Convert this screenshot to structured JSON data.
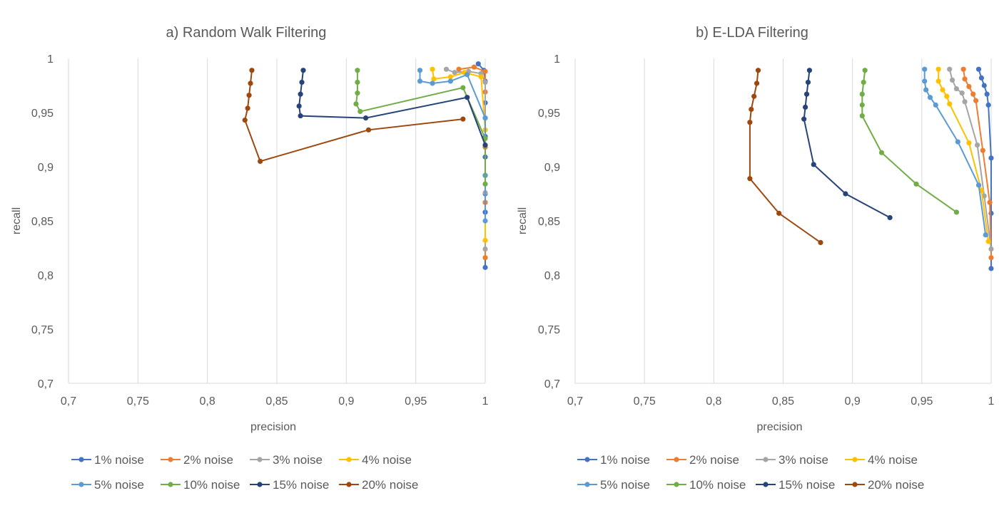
{
  "chart_data": [
    {
      "type": "line",
      "title": "a) Random Walk Filtering",
      "xlabel": "precision",
      "ylabel": "recall",
      "xlim": [
        0.7,
        1
      ],
      "ylim": [
        0.7,
        1
      ],
      "xticks": [
        0.7,
        0.75,
        0.8,
        0.85,
        0.9,
        0.95,
        1
      ],
      "yticks": [
        0.7,
        0.75,
        0.8,
        0.85,
        0.9,
        0.95,
        1
      ],
      "xtick_labels": [
        "0,7",
        "0,75",
        "0,8",
        "0,85",
        "0,9",
        "0,95",
        "1"
      ],
      "ytick_labels": [
        "0,7",
        "0,75",
        "0,8",
        "0,85",
        "0,9",
        "0,95",
        "1"
      ],
      "grid": "vertical",
      "legend_position": "bottom",
      "series": [
        {
          "name": "1% noise",
          "color": "#4472c4",
          "points": [
            [
              0.995,
              0.995
            ],
            [
              0.999,
              0.989
            ],
            [
              1.0,
              0.979
            ],
            [
              1.0,
              0.959
            ],
            [
              1.0,
              0.945
            ],
            [
              1.0,
              0.928
            ],
            [
              1.0,
              0.909
            ],
            [
              1.0,
              0.892
            ],
            [
              1.0,
              0.875
            ],
            [
              1.0,
              0.858
            ],
            [
              1.0,
              0.807
            ]
          ]
        },
        {
          "name": "2% noise",
          "color": "#ed7d31",
          "points": [
            [
              0.981,
              0.99
            ],
            [
              0.992,
              0.992
            ],
            [
              1.0,
              0.988
            ],
            [
              1.0,
              0.969
            ],
            [
              1.0,
              0.918
            ],
            [
              1.0,
              0.867
            ],
            [
              1.0,
              0.816
            ]
          ]
        },
        {
          "name": "3% noise",
          "color": "#a5a5a5",
          "points": [
            [
              0.972,
              0.99
            ],
            [
              0.978,
              0.987
            ],
            [
              0.988,
              0.988
            ],
            [
              0.997,
              0.986
            ],
            [
              1.0,
              0.978
            ],
            [
              1.0,
              0.876
            ],
            [
              1.0,
              0.824
            ]
          ]
        },
        {
          "name": "4% noise",
          "color": "#ffc000",
          "points": [
            [
              0.962,
              0.99
            ],
            [
              0.963,
              0.981
            ],
            [
              0.975,
              0.983
            ],
            [
              0.985,
              0.987
            ],
            [
              0.997,
              0.983
            ],
            [
              1.0,
              0.934
            ],
            [
              1.0,
              0.832
            ]
          ]
        },
        {
          "name": "5% noise",
          "color": "#5b9bd5",
          "points": [
            [
              0.953,
              0.989
            ],
            [
              0.953,
              0.979
            ],
            [
              0.962,
              0.977
            ],
            [
              0.975,
              0.979
            ],
            [
              0.987,
              0.985
            ],
            [
              1.0,
              0.945
            ],
            [
              1.0,
              0.892
            ],
            [
              1.0,
              0.85
            ]
          ]
        },
        {
          "name": "10% noise",
          "color": "#70ad47",
          "points": [
            [
              0.908,
              0.989
            ],
            [
              0.908,
              0.978
            ],
            [
              0.908,
              0.968
            ],
            [
              0.907,
              0.958
            ],
            [
              0.91,
              0.951
            ],
            [
              0.984,
              0.973
            ],
            [
              1.0,
              0.926
            ],
            [
              1.0,
              0.884
            ]
          ]
        },
        {
          "name": "15% noise",
          "color": "#264478",
          "points": [
            [
              0.869,
              0.989
            ],
            [
              0.868,
              0.978
            ],
            [
              0.867,
              0.967
            ],
            [
              0.866,
              0.956
            ],
            [
              0.867,
              0.947
            ],
            [
              0.914,
              0.945
            ],
            [
              0.987,
              0.964
            ],
            [
              1.0,
              0.92
            ]
          ]
        },
        {
          "name": "20% noise",
          "color": "#9e480e",
          "points": [
            [
              0.832,
              0.989
            ],
            [
              0.831,
              0.977
            ],
            [
              0.83,
              0.966
            ],
            [
              0.829,
              0.954
            ],
            [
              0.827,
              0.943
            ],
            [
              0.838,
              0.905
            ],
            [
              0.916,
              0.934
            ],
            [
              0.984,
              0.944
            ]
          ]
        }
      ]
    },
    {
      "type": "line",
      "title": "b) E-LDA Filtering",
      "xlabel": "precision",
      "ylabel": "recall",
      "xlim": [
        0.7,
        1
      ],
      "ylim": [
        0.7,
        1
      ],
      "xticks": [
        0.7,
        0.75,
        0.8,
        0.85,
        0.9,
        0.95,
        1
      ],
      "yticks": [
        0.7,
        0.75,
        0.8,
        0.85,
        0.9,
        0.95,
        1
      ],
      "xtick_labels": [
        "0,7",
        "0,75",
        "0,8",
        "0,85",
        "0,9",
        "0,95",
        "1"
      ],
      "ytick_labels": [
        "0,7",
        "0,75",
        "0,8",
        "0,85",
        "0,9",
        "0,95",
        "1"
      ],
      "grid": "vertical",
      "legend_position": "bottom",
      "series": [
        {
          "name": "1% noise",
          "color": "#4472c4",
          "points": [
            [
              0.991,
              0.99
            ],
            [
              0.993,
              0.982
            ],
            [
              0.995,
              0.975
            ],
            [
              0.997,
              0.967
            ],
            [
              0.998,
              0.957
            ],
            [
              1.0,
              0.908
            ],
            [
              1.0,
              0.857
            ],
            [
              1.0,
              0.806
            ]
          ]
        },
        {
          "name": "2% noise",
          "color": "#ed7d31",
          "points": [
            [
              0.98,
              0.99
            ],
            [
              0.981,
              0.981
            ],
            [
              0.984,
              0.974
            ],
            [
              0.987,
              0.967
            ],
            [
              0.989,
              0.961
            ],
            [
              0.994,
              0.915
            ],
            [
              0.999,
              0.867
            ],
            [
              1.0,
              0.816
            ]
          ]
        },
        {
          "name": "3% noise",
          "color": "#a5a5a5",
          "points": [
            [
              0.97,
              0.99
            ],
            [
              0.972,
              0.98
            ],
            [
              0.975,
              0.972
            ],
            [
              0.979,
              0.968
            ],
            [
              0.981,
              0.96
            ],
            [
              0.99,
              0.92
            ],
            [
              0.995,
              0.873
            ],
            [
              1.0,
              0.824
            ]
          ]
        },
        {
          "name": "4% noise",
          "color": "#ffc000",
          "points": [
            [
              0.962,
              0.99
            ],
            [
              0.962,
              0.979
            ],
            [
              0.965,
              0.971
            ],
            [
              0.968,
              0.965
            ],
            [
              0.97,
              0.958
            ],
            [
              0.984,
              0.922
            ],
            [
              0.993,
              0.878
            ],
            [
              0.998,
              0.831
            ]
          ]
        },
        {
          "name": "5% noise",
          "color": "#5b9bd5",
          "points": [
            [
              0.952,
              0.99
            ],
            [
              0.952,
              0.979
            ],
            [
              0.953,
              0.971
            ],
            [
              0.956,
              0.964
            ],
            [
              0.96,
              0.957
            ],
            [
              0.976,
              0.923
            ],
            [
              0.991,
              0.883
            ],
            [
              0.996,
              0.837
            ]
          ]
        },
        {
          "name": "10% noise",
          "color": "#70ad47",
          "points": [
            [
              0.909,
              0.989
            ],
            [
              0.908,
              0.978
            ],
            [
              0.907,
              0.967
            ],
            [
              0.907,
              0.957
            ],
            [
              0.907,
              0.947
            ],
            [
              0.921,
              0.913
            ],
            [
              0.946,
              0.884
            ],
            [
              0.975,
              0.858
            ]
          ]
        },
        {
          "name": "15% noise",
          "color": "#264478",
          "points": [
            [
              0.869,
              0.989
            ],
            [
              0.868,
              0.978
            ],
            [
              0.867,
              0.967
            ],
            [
              0.866,
              0.955
            ],
            [
              0.865,
              0.944
            ],
            [
              0.872,
              0.902
            ],
            [
              0.895,
              0.875
            ],
            [
              0.927,
              0.853
            ]
          ]
        },
        {
          "name": "20% noise",
          "color": "#9e480e",
          "points": [
            [
              0.832,
              0.989
            ],
            [
              0.831,
              0.977
            ],
            [
              0.829,
              0.965
            ],
            [
              0.827,
              0.953
            ],
            [
              0.826,
              0.941
            ],
            [
              0.826,
              0.889
            ],
            [
              0.847,
              0.857
            ],
            [
              0.877,
              0.83
            ]
          ]
        }
      ]
    }
  ]
}
